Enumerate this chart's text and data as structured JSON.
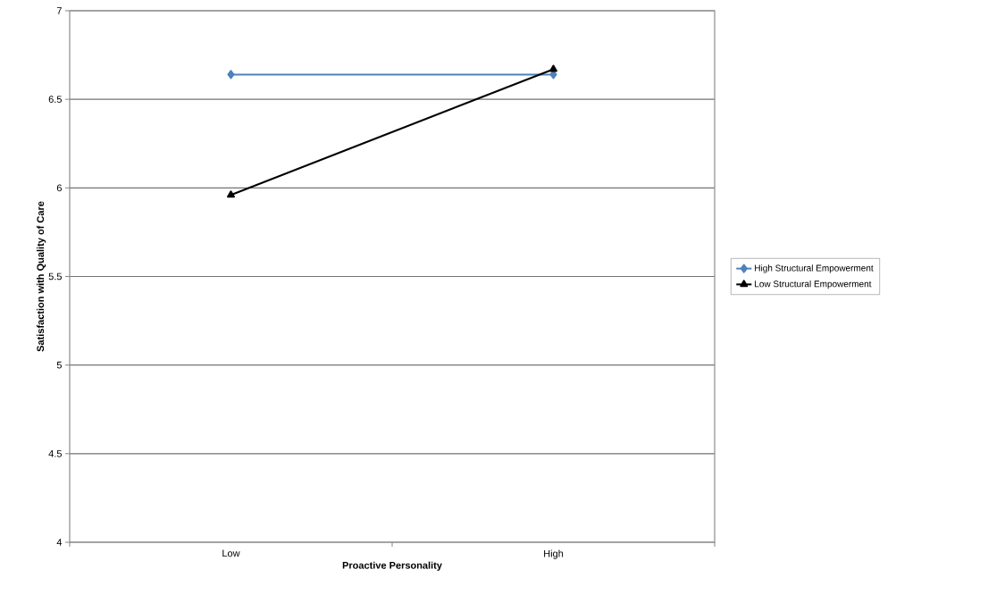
{
  "chart_data": {
    "type": "line",
    "xlabel": "Proactive Personality",
    "ylabel": "Satisfaction with Quality of Care",
    "categories": [
      "Low",
      "High"
    ],
    "series": [
      {
        "name": "High Structural Empowerment",
        "color": "#4f81bd",
        "marker": "diamond",
        "values": [
          6.64,
          6.64
        ]
      },
      {
        "name": "Low Structural Empowerment",
        "color": "#000000",
        "marker": "triangle",
        "values": [
          5.96,
          6.67
        ]
      }
    ],
    "ylim": [
      4,
      7
    ],
    "yticks": [
      4,
      4.5,
      5,
      5.5,
      6,
      6.5,
      7
    ],
    "grid": "y",
    "legend": "right",
    "line_style": "solid"
  }
}
